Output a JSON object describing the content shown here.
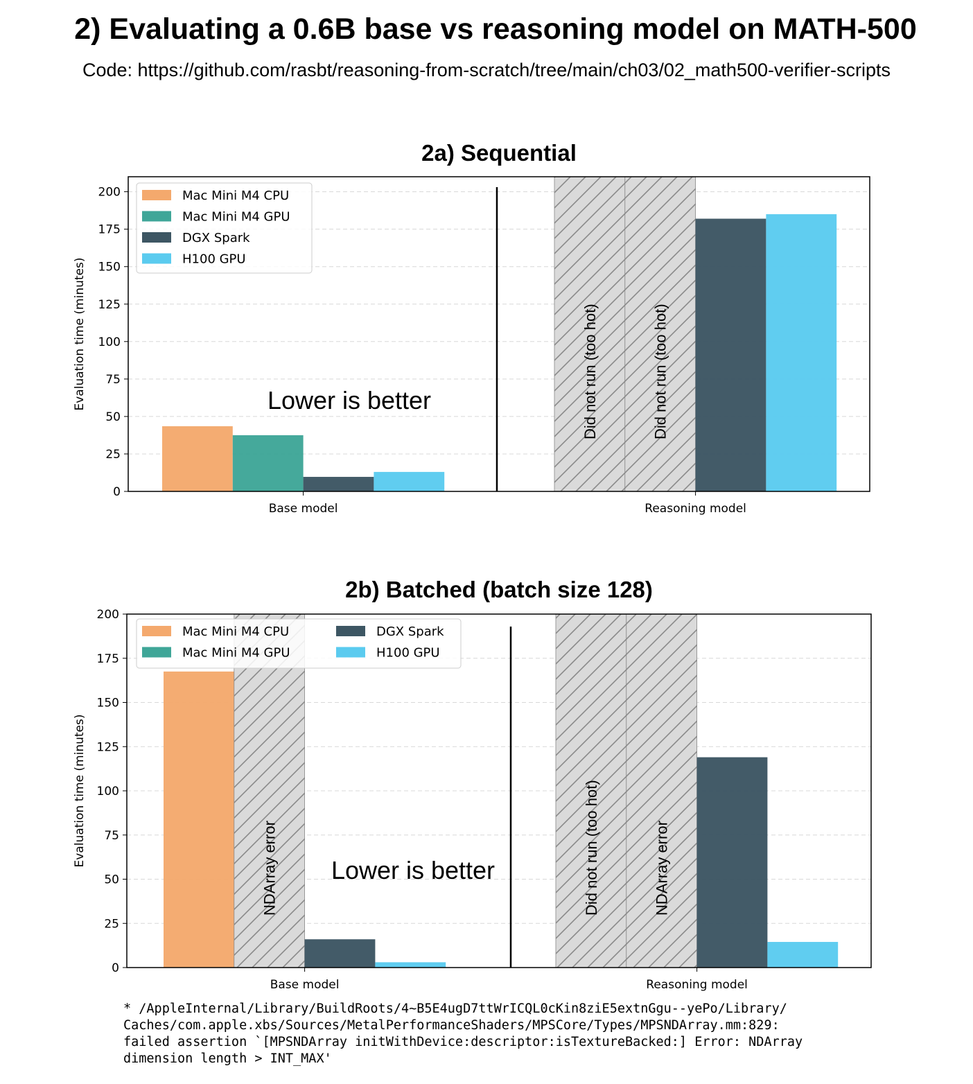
{
  "title": "2) Evaluating a 0.6B base vs reasoning model on MATH-500",
  "subtitle": "Code: https://github.com/rasbt/reasoning-from-scratch/tree/main/ch03/02_math500-verifier-scripts",
  "colors": {
    "Mac Mini M4 CPU": "#f4a96d",
    "Mac Mini M4 GPU": "#3fa698",
    "DGX Spark": "#3d5663",
    "H100 GPU": "#5bcbef",
    "hatch_fill": "#dadada",
    "hatch_line": "#8a8a8a"
  },
  "chart_data": [
    {
      "type": "bar",
      "title": "2a) Sequential",
      "ylabel": "Evaluation time (minutes)",
      "xlabel": "",
      "categories": [
        "Base model",
        "Reasoning model"
      ],
      "ylim": [
        0,
        210
      ],
      "yticks": [
        0,
        25,
        50,
        75,
        100,
        125,
        150,
        175,
        200
      ],
      "grid": true,
      "legend": {
        "placement": "top-left",
        "columns": 1
      },
      "series": [
        {
          "name": "Mac Mini M4 CPU",
          "values": [
            43.5,
            null
          ],
          "annotations": [
            null,
            "Did not run (too hot)"
          ]
        },
        {
          "name": "Mac Mini M4 GPU",
          "values": [
            37.5,
            null
          ],
          "annotations": [
            null,
            "Did not run (too hot)"
          ]
        },
        {
          "name": "DGX Spark",
          "values": [
            9.7,
            182
          ],
          "annotations": [
            null,
            null
          ]
        },
        {
          "name": "H100 GPU",
          "values": [
            13,
            185
          ],
          "annotations": [
            null,
            null
          ]
        }
      ],
      "note": "Lower is better"
    },
    {
      "type": "bar",
      "title": "2b) Batched (batch size 128)",
      "ylabel": "Evaluation time (minutes)",
      "xlabel": "",
      "categories": [
        "Base model",
        "Reasoning model"
      ],
      "ylim": [
        0,
        200
      ],
      "yticks": [
        0,
        25,
        50,
        75,
        100,
        125,
        150,
        175,
        200
      ],
      "grid": true,
      "legend": {
        "placement": "top-left",
        "columns": 2
      },
      "series": [
        {
          "name": "Mac Mini M4 CPU",
          "values": [
            167.5,
            null
          ],
          "annotations": [
            null,
            "Did not run (too hot)"
          ]
        },
        {
          "name": "Mac Mini M4 GPU",
          "values": [
            null,
            null
          ],
          "annotations": [
            "NDArray error",
            "NDArray error"
          ]
        },
        {
          "name": "DGX Spark",
          "values": [
            16,
            119
          ],
          "annotations": [
            null,
            null
          ]
        },
        {
          "name": "H100 GPU",
          "values": [
            3,
            14.5
          ],
          "annotations": [
            null,
            null
          ]
        }
      ],
      "note": "Lower is better"
    }
  ],
  "footnote": "* /AppleInternal/Library/BuildRoots/4~B5E4ugD7ttWrICQL0cKin8ziE5extnGgu--yePo/Library/\nCaches/com.apple.xbs/Sources/MetalPerformanceShaders/MPSCore/Types/MPSNDArray.mm:829:\nfailed assertion `[MPSNDArray initWithDevice:descriptor:isTextureBacked:] Error: NDArray\ndimension length > INT_MAX'"
}
